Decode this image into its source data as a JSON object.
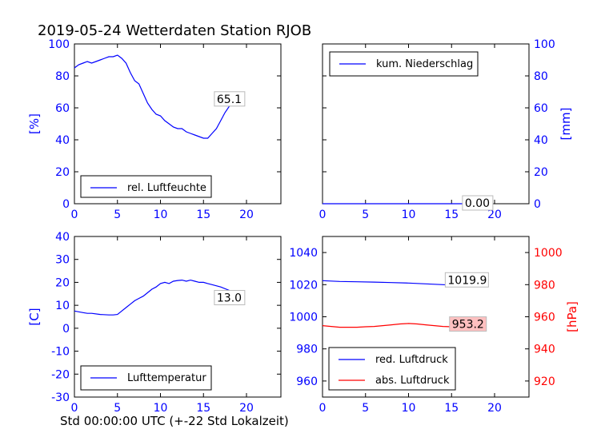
{
  "page": {
    "title": "2019-05-24 Wetterdaten Station RJOB",
    "xlabel": "Std 00:00:00 UTC (+-22 Std Lokalzeit)"
  },
  "colors": {
    "blue": "#0000ff",
    "red": "#ff0000",
    "black": "#000000",
    "label_box_bg": "#ffffff",
    "label_box_red_bg": "#ffc0c0"
  },
  "chart_data": [
    {
      "id": "humidity",
      "type": "line",
      "xlim": [
        0,
        24
      ],
      "ylim": [
        0,
        100
      ],
      "xticks": [
        0,
        5,
        10,
        15,
        20
      ],
      "yticks": [
        0,
        20,
        40,
        60,
        80,
        100
      ],
      "ylabel": "[%]",
      "y_axis_side": "left",
      "tick_color": "#0000ff",
      "series": [
        {
          "name": "rel. Luftfeuchte",
          "color": "#0000ff",
          "x": [
            0,
            0.5,
            1,
            1.5,
            2,
            2.5,
            3,
            3.5,
            4,
            4.5,
            5,
            5.5,
            6,
            6.5,
            7,
            7.5,
            8,
            8.5,
            9,
            9.5,
            10,
            10.5,
            11,
            11.5,
            12,
            12.5,
            13,
            13.5,
            14,
            14.5,
            15,
            15.5,
            16,
            16.5,
            17,
            17.5,
            18,
            18.5,
            19
          ],
          "y": [
            85,
            87,
            88,
            89,
            88,
            89,
            90,
            91,
            92,
            92,
            93,
            91,
            88,
            82,
            77,
            75,
            69,
            63,
            59,
            56,
            55,
            52,
            50,
            48,
            47,
            47,
            45,
            44,
            43,
            42,
            41,
            41,
            44,
            47,
            52,
            57,
            61,
            63,
            65
          ]
        }
      ],
      "last_value_label": "65.1",
      "last_value_at": [
        18.5,
        65.1
      ],
      "legend": "bottom-left"
    },
    {
      "id": "precip",
      "type": "line",
      "xlim": [
        0,
        24
      ],
      "ylim": [
        0,
        100
      ],
      "xticks": [
        0,
        5,
        10,
        15,
        20
      ],
      "yticks": [
        0,
        20,
        40,
        60,
        80,
        100
      ],
      "ylabel": "[mm]",
      "y_axis_side": "right",
      "tick_color": "#0000ff",
      "series": [
        {
          "name": "kum. Niederschlag",
          "color": "#0000ff",
          "x": [
            0,
            19
          ],
          "y": [
            0,
            0
          ]
        }
      ],
      "last_value_label": "0.00",
      "last_value_at": [
        18.5,
        0
      ],
      "legend": "top-left"
    },
    {
      "id": "temperature",
      "type": "line",
      "xlim": [
        0,
        24
      ],
      "ylim": [
        -30,
        40
      ],
      "xticks": [
        0,
        5,
        10,
        15,
        20
      ],
      "yticks": [
        -30,
        -20,
        -10,
        0,
        10,
        20,
        30,
        40
      ],
      "ylabel": "[C]",
      "y_axis_side": "left",
      "tick_color": "#0000ff",
      "series": [
        {
          "name": "Lufttemperatur",
          "color": "#0000ff",
          "x": [
            0,
            1,
            1.5,
            2,
            3,
            4,
            4.5,
            5,
            5.5,
            6,
            6.5,
            7,
            7.5,
            8,
            8.5,
            9,
            9.5,
            10,
            10.5,
            11,
            11.5,
            12,
            12.5,
            13,
            13.5,
            14,
            14.5,
            15,
            15.5,
            16,
            17,
            18,
            19
          ],
          "y": [
            7.5,
            6.8,
            6.5,
            6.5,
            6.0,
            5.8,
            5.8,
            6.0,
            7.5,
            9.0,
            10.5,
            12.0,
            13.0,
            14.0,
            15.5,
            17.0,
            18.0,
            19.5,
            20.0,
            19.5,
            20.5,
            20.8,
            21.0,
            20.5,
            21.0,
            20.5,
            20.0,
            20.0,
            19.5,
            19.0,
            18.0,
            16.5,
            13.0
          ]
        }
      ],
      "last_value_label": "13.0",
      "last_value_at": [
        18.5,
        13.0
      ],
      "legend": "bottom-left"
    },
    {
      "id": "pressure",
      "type": "line",
      "xlim": [
        0,
        24
      ],
      "ylim": [
        950,
        1050
      ],
      "ylim_right": [
        910,
        1010
      ],
      "xticks": [
        0,
        5,
        10,
        15,
        20
      ],
      "yticks": [
        960,
        980,
        1000,
        1020,
        1040
      ],
      "yticks_right": [
        920,
        940,
        960,
        980,
        1000
      ],
      "ylabel_right": "[hPa]",
      "tick_color": "#0000ff",
      "tick_color_right": "#ff0000",
      "series": [
        {
          "name": "red. Luftdruck",
          "color": "#0000ff",
          "axis": "left",
          "x": [
            0,
            2,
            4,
            6,
            8,
            10,
            12,
            14,
            16,
            17,
            18,
            19
          ],
          "y": [
            1022.5,
            1022.0,
            1021.8,
            1021.6,
            1021.3,
            1021.0,
            1020.5,
            1020.0,
            1019.5,
            1019.5,
            1019.7,
            1019.9
          ]
        },
        {
          "name": "abs. Luftdruck",
          "color": "#ff0000",
          "axis": "right",
          "x": [
            0,
            1,
            2,
            3,
            4,
            5,
            6,
            7,
            8,
            9,
            10,
            11,
            12,
            13,
            14,
            15,
            16,
            17,
            18,
            19
          ],
          "y": [
            954.5,
            954.0,
            953.5,
            953.5,
            953.5,
            953.8,
            954.0,
            954.5,
            955.0,
            955.5,
            955.8,
            955.5,
            955.0,
            954.5,
            954.0,
            953.8,
            953.5,
            953.3,
            953.2,
            953.2
          ]
        }
      ],
      "last_value_labels": [
        {
          "text": "1019.9",
          "at": [
            16.5,
            1022.5
          ],
          "axis": "left",
          "red": false
        },
        {
          "text": "953.2",
          "at": [
            17.0,
            955.0
          ],
          "axis": "right",
          "red": true
        }
      ],
      "legend": "bottom-left"
    }
  ]
}
